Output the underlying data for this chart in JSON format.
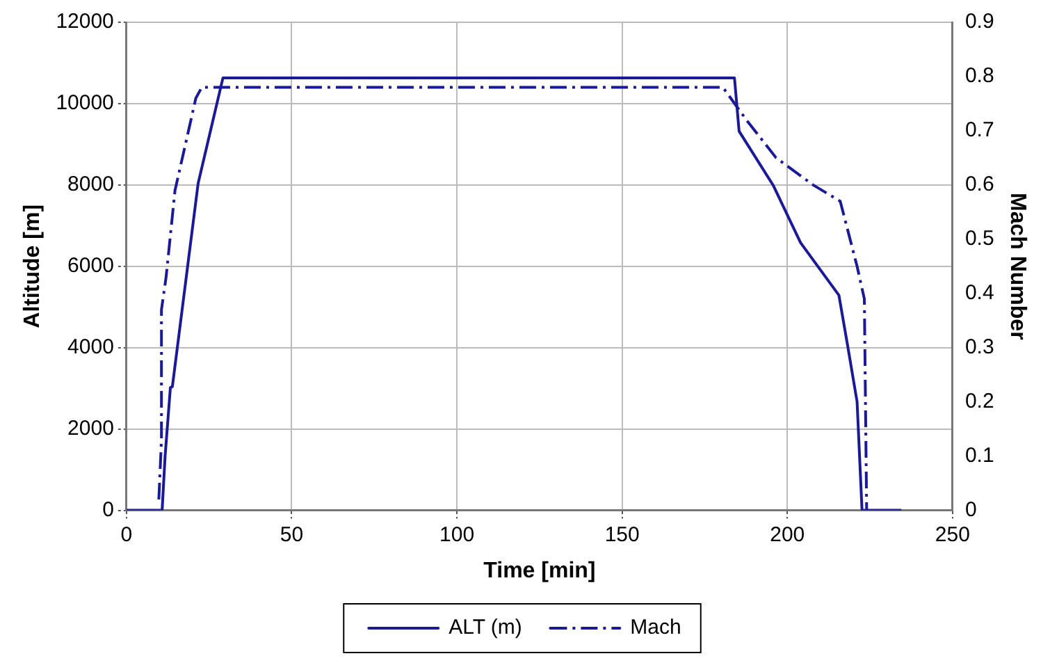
{
  "chart_data": {
    "type": "line",
    "xlabel": "Time [min]",
    "ylabel": "Altitude [m]",
    "y2label": "Mach Number",
    "xlim": [
      0,
      250
    ],
    "xticks": [
      0,
      50,
      100,
      150,
      200,
      250
    ],
    "ylim": [
      0,
      12000
    ],
    "yticks": [
      0,
      2000,
      4000,
      6000,
      8000,
      10000,
      12000
    ],
    "y2lim": [
      0,
      0.9
    ],
    "y2ticks": [
      0,
      0.1,
      0.2,
      0.3,
      0.4,
      0.5,
      0.6,
      0.7,
      0.8,
      0.9
    ],
    "grid": true,
    "legend": "bottom",
    "marker": "none",
    "series": [
      {
        "name": "ALT (m)",
        "color": "#1a1a99",
        "line_style": "solid",
        "x": [
          0,
          10.8,
          11.7,
          13.3,
          13.9,
          21.7,
          25.4,
          29.2,
          184,
          185.4,
          195.8,
          204,
          215.6,
          218.2,
          221.1,
          222.6,
          234.5
        ],
        "values": [
          0,
          0,
          1330,
          3020,
          3040,
          8040,
          9320,
          10630,
          10630,
          9320,
          7980,
          6580,
          5290,
          4070,
          2670,
          0,
          0
        ]
      },
      {
        "name": "Mach",
        "color": "#1a1a99",
        "line_style": "dashdot",
        "axis": "y2",
        "x": [
          9.8,
          10.6,
          10.6,
          12,
          14.7,
          17.3,
          21,
          22.8,
          180.5,
          187.6,
          196.6,
          207.8,
          216,
          221.1,
          223.3,
          224
        ],
        "values": [
          0.02,
          0.13,
          0.37,
          0.43,
          0.59,
          0.66,
          0.76,
          0.78,
          0.78,
          0.72,
          0.65,
          0.6,
          0.57,
          0.45,
          0.39,
          0
        ]
      }
    ]
  }
}
